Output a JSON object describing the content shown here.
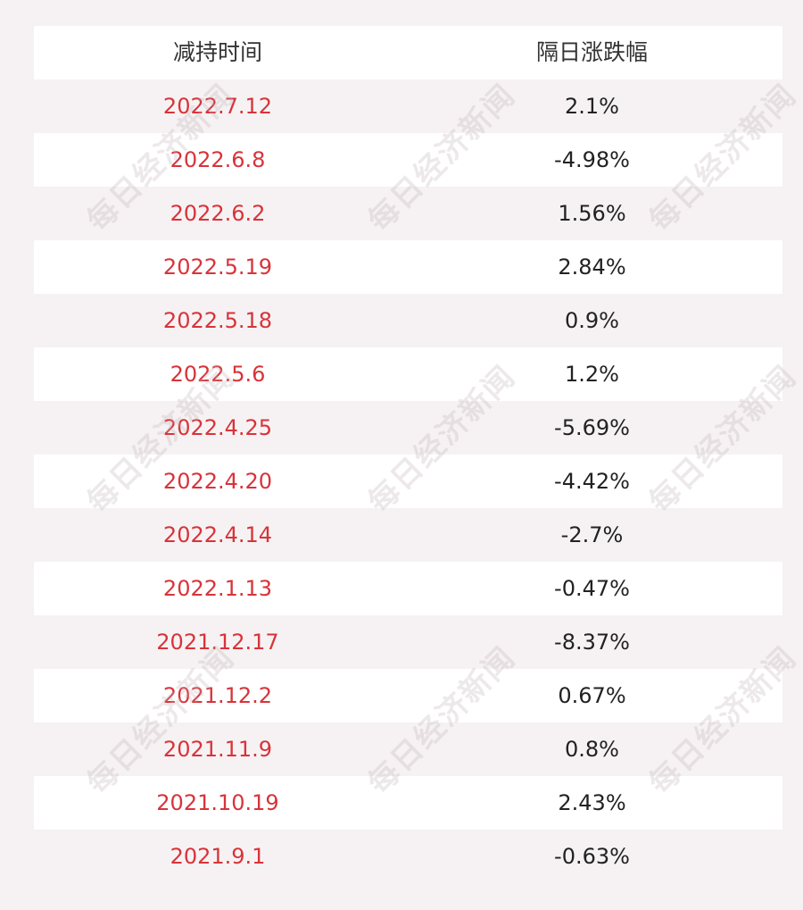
{
  "table": {
    "headers": [
      "减持时间",
      "隔日涨跌幅"
    ],
    "rows": [
      {
        "date": "2022.7.12",
        "change": "2.1%"
      },
      {
        "date": "2022.6.8",
        "change": "-4.98%"
      },
      {
        "date": "2022.6.2",
        "change": "1.56%"
      },
      {
        "date": "2022.5.19",
        "change": "2.84%"
      },
      {
        "date": "2022.5.18",
        "change": "0.9%"
      },
      {
        "date": "2022.5.6",
        "change": "1.2%"
      },
      {
        "date": "2022.4.25",
        "change": "-5.69%"
      },
      {
        "date": "2022.4.20",
        "change": "-4.42%"
      },
      {
        "date": "2022.4.14",
        "change": "-2.7%"
      },
      {
        "date": "2022.1.13",
        "change": "-0.47%"
      },
      {
        "date": "2021.12.17",
        "change": "-8.37%"
      },
      {
        "date": "2021.12.2",
        "change": "0.67%"
      },
      {
        "date": "2021.11.9",
        "change": "0.8%"
      },
      {
        "date": "2021.10.19",
        "change": "2.43%"
      },
      {
        "date": "2021.9.1",
        "change": "-0.63%"
      }
    ]
  },
  "watermark": {
    "text": "每日经济新闻"
  },
  "colors": {
    "date_text": "#d8333a",
    "value_text": "#222222",
    "header_text": "#333333",
    "background": "#f6f2f3",
    "stripe": "#ffffff"
  }
}
